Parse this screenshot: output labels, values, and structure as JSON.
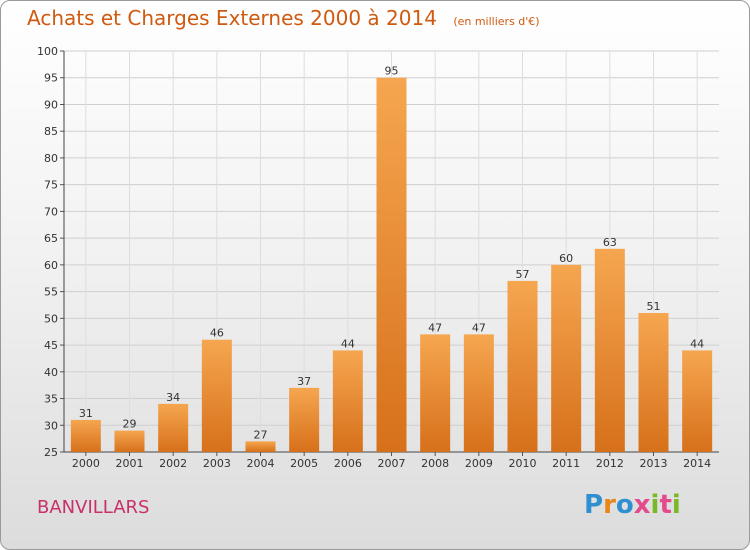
{
  "header": {
    "title": "Achats et Charges Externes 2000 à 2014",
    "subtitle": "(en milliers d'€)"
  },
  "footer": {
    "commune": "BANVILLARS",
    "logo": [
      "P",
      "r",
      "o",
      "x",
      "i",
      "t",
      "i"
    ],
    "logo_colors": [
      "#2f8fd0",
      "#e8861a",
      "#2f8fd0",
      "#e34b8a",
      "#7ab828",
      "#e34b8a",
      "#7ab828"
    ]
  },
  "chart_data": {
    "type": "bar",
    "title": "Achats et Charges Externes 2000 à 2014",
    "subtitle": "(en milliers d'€)",
    "categories": [
      "2000",
      "2001",
      "2002",
      "2003",
      "2004",
      "2005",
      "2006",
      "2007",
      "2008",
      "2009",
      "2010",
      "2011",
      "2012",
      "2013",
      "2014"
    ],
    "values": [
      31,
      29,
      34,
      46,
      27,
      37,
      44,
      95,
      47,
      47,
      57,
      60,
      63,
      51,
      44
    ],
    "ylim": [
      25,
      100
    ],
    "yticks": [
      25,
      30,
      35,
      40,
      45,
      50,
      55,
      60,
      65,
      70,
      75,
      80,
      85,
      90,
      95,
      100
    ],
    "grid": true,
    "bar_color_top": "#f6a650",
    "bar_color_bottom": "#d7701a"
  }
}
